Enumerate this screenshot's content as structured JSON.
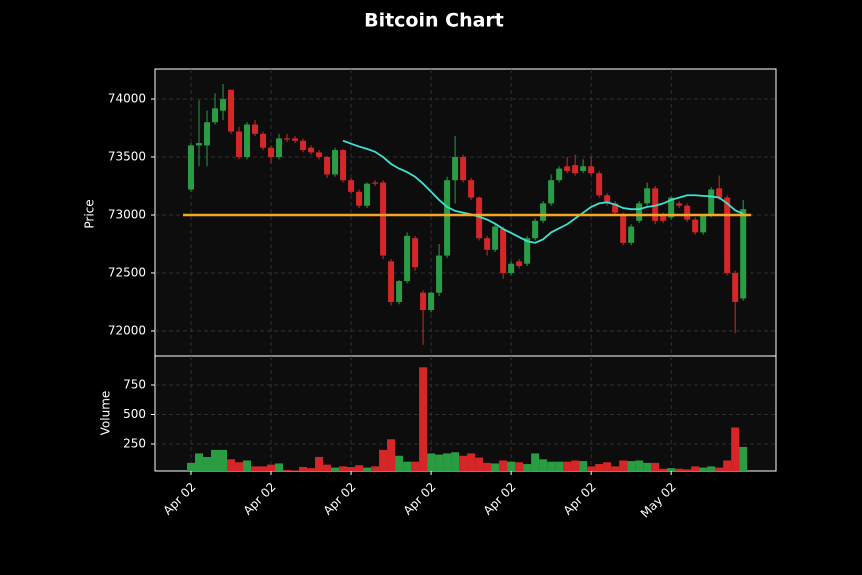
{
  "chart_data": {
    "type": "candlestick",
    "title": "Bitcoin Chart",
    "ylabel": "Price",
    "volume_ylabel": "Volume",
    "up_color": "#2a9d44",
    "down_color": "#d62728",
    "mav_color": "#40e0d0",
    "hline_color": "#f5a623",
    "hline": 73000,
    "grid": true,
    "xlim": [
      -4.5,
      73.1
    ],
    "ylim": [
      71784,
      74259
    ],
    "volume_ylim": [
      21,
      996
    ],
    "xticks": [
      {
        "value": 0,
        "label": "Apr 02"
      },
      {
        "value": 10,
        "label": "Apr 02"
      },
      {
        "value": 20,
        "label": "Apr 02"
      },
      {
        "value": 30,
        "label": "Apr 02"
      },
      {
        "value": 40,
        "label": "Apr 02"
      },
      {
        "value": 50,
        "label": "Apr 02"
      },
      {
        "value": 60,
        "label": "May 02"
      }
    ],
    "yticks": [
      72000,
      72500,
      73000,
      73500,
      74000
    ],
    "volume_yticks": [
      250,
      500,
      750
    ],
    "open": [
      73220,
      73600,
      73600,
      73800,
      73900,
      74080,
      73720,
      73500,
      73780,
      73700,
      73580,
      73500,
      73660,
      73660,
      73640,
      73580,
      73540,
      73500,
      73350,
      73560,
      73300,
      73200,
      73080,
      73280,
      73280,
      72600,
      72250,
      72430,
      72800,
      72330,
      72180,
      72330,
      72650,
      73300,
      73500,
      73300,
      73150,
      72800,
      72700,
      72880,
      72500,
      72600,
      72580,
      72800,
      72950,
      73100,
      73300,
      73420,
      73430,
      73380,
      73420,
      73360,
      73170,
      73100,
      73000,
      72760,
      72950,
      73100,
      73230,
      73000,
      72980,
      73100,
      73080,
      72960,
      72850,
      73000,
      73230,
      73150,
      72500,
      72280
    ],
    "high": [
      73620,
      73990,
      73900,
      74050,
      74130,
      74080,
      73760,
      73800,
      73820,
      73720,
      73600,
      73700,
      73700,
      73680,
      73660,
      73600,
      73560,
      73510,
      73580,
      73570,
      73320,
      73220,
      73280,
      73300,
      73300,
      72620,
      72440,
      72850,
      72820,
      72350,
      72340,
      72750,
      73330,
      73680,
      73520,
      73320,
      73160,
      72820,
      72930,
      72900,
      72600,
      72620,
      72820,
      72970,
      73120,
      73350,
      73420,
      73500,
      73520,
      73480,
      73500,
      73380,
      73190,
      73120,
      73020,
      72920,
      73120,
      73280,
      73250,
      73020,
      73160,
      73120,
      73100,
      72980,
      73010,
      73240,
      73340,
      73170,
      72520,
      73130
    ],
    "low": [
      73200,
      73420,
      73420,
      73780,
      73820,
      73700,
      73480,
      73480,
      73680,
      73560,
      73440,
      73480,
      73630,
      73620,
      73540,
      73520,
      73480,
      73320,
      73330,
      73280,
      73180,
      73060,
      73060,
      73250,
      72620,
      72220,
      72230,
      72410,
      72520,
      71880,
      72160,
      72300,
      72630,
      73100,
      73280,
      73130,
      72780,
      72650,
      72680,
      72450,
      72480,
      72540,
      72560,
      72780,
      72930,
      73080,
      73280,
      73360,
      73340,
      73360,
      73340,
      73150,
      73080,
      73000,
      72740,
      72740,
      72930,
      73080,
      72920,
      72930,
      72960,
      73060,
      72940,
      72830,
      72830,
      72980,
      73130,
      72480,
      71980,
      72260
    ],
    "close": [
      73600,
      73620,
      73800,
      73920,
      74000,
      73720,
      73500,
      73780,
      73700,
      73580,
      73500,
      73660,
      73650,
      73640,
      73560,
      73540,
      73500,
      73350,
      73560,
      73300,
      73200,
      73080,
      73270,
      73270,
      72650,
      72250,
      72430,
      72820,
      72550,
      72180,
      72330,
      72650,
      73300,
      73500,
      73300,
      73150,
      72800,
      72700,
      72900,
      72500,
      72580,
      72560,
      72800,
      72950,
      73100,
      73300,
      73400,
      73380,
      73360,
      73420,
      73360,
      73170,
      73100,
      73020,
      72760,
      72900,
      73100,
      73230,
      72950,
      72950,
      73150,
      73080,
      72960,
      72850,
      73000,
      73220,
      73150,
      72500,
      72250,
      73050
    ],
    "volume": [
      90,
      170,
      140,
      200,
      200,
      120,
      95,
      110,
      60,
      60,
      75,
      85,
      30,
      25,
      55,
      45,
      140,
      75,
      50,
      60,
      55,
      70,
      50,
      60,
      200,
      290,
      150,
      100,
      100,
      900,
      170,
      160,
      170,
      180,
      150,
      170,
      135,
      90,
      85,
      110,
      100,
      95,
      80,
      170,
      120,
      100,
      100,
      100,
      110,
      105,
      60,
      80,
      95,
      60,
      110,
      105,
      110,
      90,
      90,
      40,
      45,
      40,
      35,
      60,
      50,
      60,
      50,
      110,
      390,
      225
    ],
    "mav": [
      null,
      null,
      null,
      null,
      null,
      null,
      null,
      null,
      null,
      null,
      null,
      null,
      null,
      null,
      null,
      null,
      null,
      null,
      null,
      73640,
      73615,
      73590,
      73570,
      73545,
      73500,
      73440,
      73400,
      73370,
      73330,
      73270,
      73200,
      73130,
      73070,
      73035,
      73020,
      73005,
      72985,
      72960,
      72925,
      72880,
      72845,
      72810,
      72775,
      72760,
      72790,
      72850,
      72885,
      72920,
      72970,
      73020,
      73070,
      73100,
      73110,
      73090,
      73060,
      73050,
      73050,
      73070,
      73080,
      73100,
      73130,
      73150,
      73170,
      73170,
      73165,
      73160,
      73150,
      73100,
      73040,
      73010
    ]
  }
}
